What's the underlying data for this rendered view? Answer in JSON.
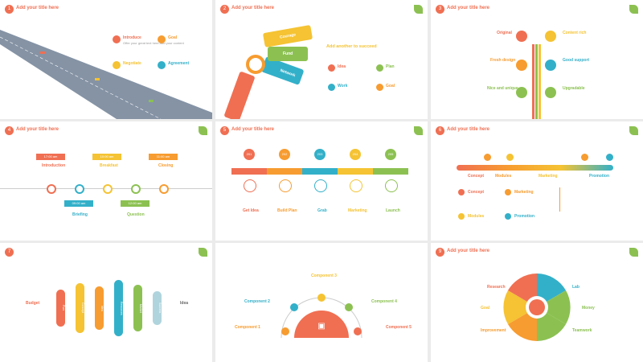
{
  "slides": [
    {
      "num": "1",
      "title": "Add your title here"
    },
    {
      "num": "2",
      "title": "Add your title here"
    },
    {
      "num": "3",
      "title": "Add your title here"
    },
    {
      "num": "4",
      "title": "Add your title here"
    },
    {
      "num": "5",
      "title": "Add your title here"
    },
    {
      "num": "6",
      "title": "Add your title here"
    },
    {
      "num": "7",
      "title": "Add your title here"
    },
    {
      "num": "8",
      "title": "Add your title here"
    },
    {
      "num": "9",
      "title": "Add your title here"
    }
  ],
  "s1": {
    "items": [
      "Introduce",
      "Goal",
      "Negotiate",
      "Agreement"
    ],
    "lorem": "Offer your great text here Add your content"
  },
  "s2": {
    "tags": [
      "Start",
      "Network",
      "Fund",
      "Courage"
    ],
    "heading": "Add another to succeed",
    "items": [
      "Idea",
      "Plan",
      "Work",
      "Goal"
    ]
  },
  "s3": {
    "left": [
      "Original",
      "Fresh design",
      "Nice and unique"
    ],
    "right": [
      "Content rich",
      "Good support",
      "Upgradable"
    ]
  },
  "s4": {
    "top": [
      {
        "time": "17:00 am",
        "label": "Introduction"
      },
      {
        "time": "10:00 am",
        "label": "Breakfast"
      },
      {
        "time": "11:00 am",
        "label": "Closing"
      }
    ],
    "bottom": [
      {
        "time": "09:00 am",
        "label": "Briefing"
      },
      {
        "time": "12:00 am",
        "label": "Question"
      }
    ]
  },
  "s5": {
    "years": [
      "201",
      "202",
      "203",
      "204",
      "205"
    ],
    "labels": [
      "Get Idea",
      "Build Plan",
      "Grab",
      "Marketing",
      "Launch"
    ]
  },
  "s6": {
    "stages": [
      "Concept",
      "Modules",
      "Marketing",
      "Promotion"
    ],
    "items": [
      "Concept",
      "Marketing",
      "Modules",
      "Promotion"
    ]
  },
  "s7": {
    "left_label": "Budget",
    "right_label": "Idea",
    "pills": [
      "Plan",
      "Concept",
      "Idea",
      "Resources",
      "Market",
      "Success"
    ]
  },
  "s8": {
    "components": [
      "Component 1",
      "Component 2",
      "Component 3",
      "Component 4",
      "Component 5"
    ]
  },
  "s9": {
    "left": [
      "Research",
      "Goal",
      "Improvement"
    ],
    "right": [
      "Lab",
      "Money",
      "Teamwork"
    ]
  }
}
